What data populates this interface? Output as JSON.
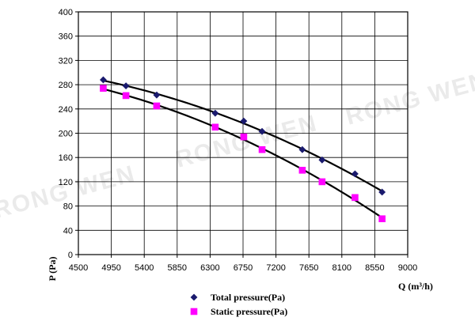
{
  "chart_data": {
    "type": "scatter",
    "title": "",
    "xlabel": "Q (m³/h)",
    "ylabel": "P (Pa)",
    "xlim": [
      4500,
      9000
    ],
    "ylim": [
      0,
      400
    ],
    "x_ticks": [
      4500,
      4950,
      5400,
      5850,
      6300,
      6750,
      7200,
      7650,
      8100,
      8550,
      9000
    ],
    "y_ticks": [
      0,
      40,
      80,
      120,
      160,
      200,
      240,
      280,
      320,
      360,
      400
    ],
    "grid": true,
    "legend_position": "bottom",
    "series": [
      {
        "name": "Total pressure(Pa)",
        "marker": "diamond",
        "color": "#1a1a6e",
        "trendline": true,
        "x": [
          4840,
          5150,
          5570,
          6370,
          6760,
          7010,
          7560,
          7830,
          8280,
          8650
        ],
        "y": [
          288,
          278,
          263,
          233,
          220,
          203,
          173,
          156,
          133,
          103
        ]
      },
      {
        "name": "Static pressure(Pa)",
        "marker": "square",
        "color": "#ff00ff",
        "trendline": true,
        "x": [
          4840,
          5150,
          5570,
          6370,
          6760,
          7010,
          7560,
          7830,
          8280,
          8650
        ],
        "y": [
          274,
          262,
          245,
          210,
          194,
          173,
          139,
          120,
          94,
          59
        ]
      }
    ]
  },
  "watermarks": [
    "RONG WEN",
    "RONG WEN",
    "RONG WEN"
  ]
}
